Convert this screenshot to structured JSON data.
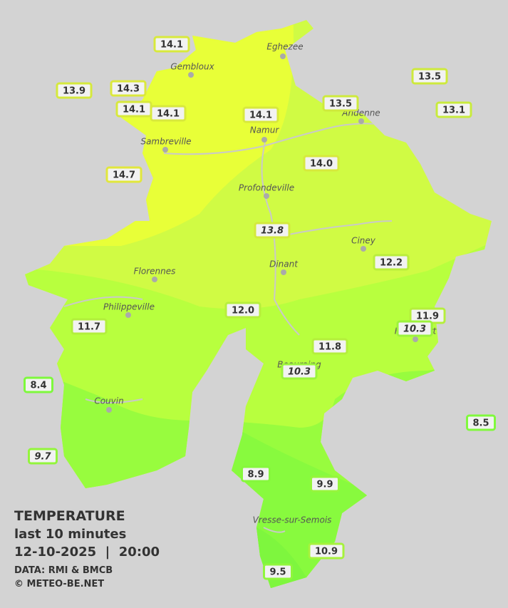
{
  "towns": [
    "Eghezee",
    "Gembloux",
    "Sambreville",
    "Namur",
    "Andenne",
    "Profondeville",
    "Ciney",
    "Florennes",
    "Dinant",
    "Philippeville",
    "Couvin",
    "Vresse-sur-Semois",
    "Rochefort",
    "Beauraing"
  ],
  "stations": [
    {
      "label": "14.1",
      "italic": false
    },
    {
      "label": "13.9",
      "italic": false
    },
    {
      "label": "14.3",
      "italic": false
    },
    {
      "label": "14.1",
      "italic": false
    },
    {
      "label": "14.1",
      "italic": false
    },
    {
      "label": "14.1",
      "italic": false
    },
    {
      "label": "13.5",
      "italic": false
    },
    {
      "label": "13.5",
      "italic": false
    },
    {
      "label": "13.1",
      "italic": false
    },
    {
      "label": "14.7",
      "italic": false
    },
    {
      "label": "14.0",
      "italic": false
    },
    {
      "label": "13.8",
      "italic": true
    },
    {
      "label": "12.2",
      "italic": false
    },
    {
      "label": "12.0",
      "italic": false
    },
    {
      "label": "11.9",
      "italic": false
    },
    {
      "label": "10.3",
      "italic": true
    },
    {
      "label": "11.7",
      "italic": false
    },
    {
      "label": "11.8",
      "italic": false
    },
    {
      "label": "10.3",
      "italic": true
    },
    {
      "label": "8.4",
      "italic": false
    },
    {
      "label": "8.5",
      "italic": false
    },
    {
      "label": "9.7",
      "italic": true
    },
    {
      "label": "8.9",
      "italic": false
    },
    {
      "label": "9.9",
      "italic": false
    },
    {
      "label": "10.9",
      "italic": false
    },
    {
      "label": "9.5",
      "italic": false
    }
  ],
  "legend": {
    "title": "TEMPERATURE",
    "subtitle": "last 10 minutes",
    "datetime": "12-10-2025  |  20:00",
    "source": "DATA: RMI & BMCB",
    "credit": "© METEO-BE.NET"
  }
}
